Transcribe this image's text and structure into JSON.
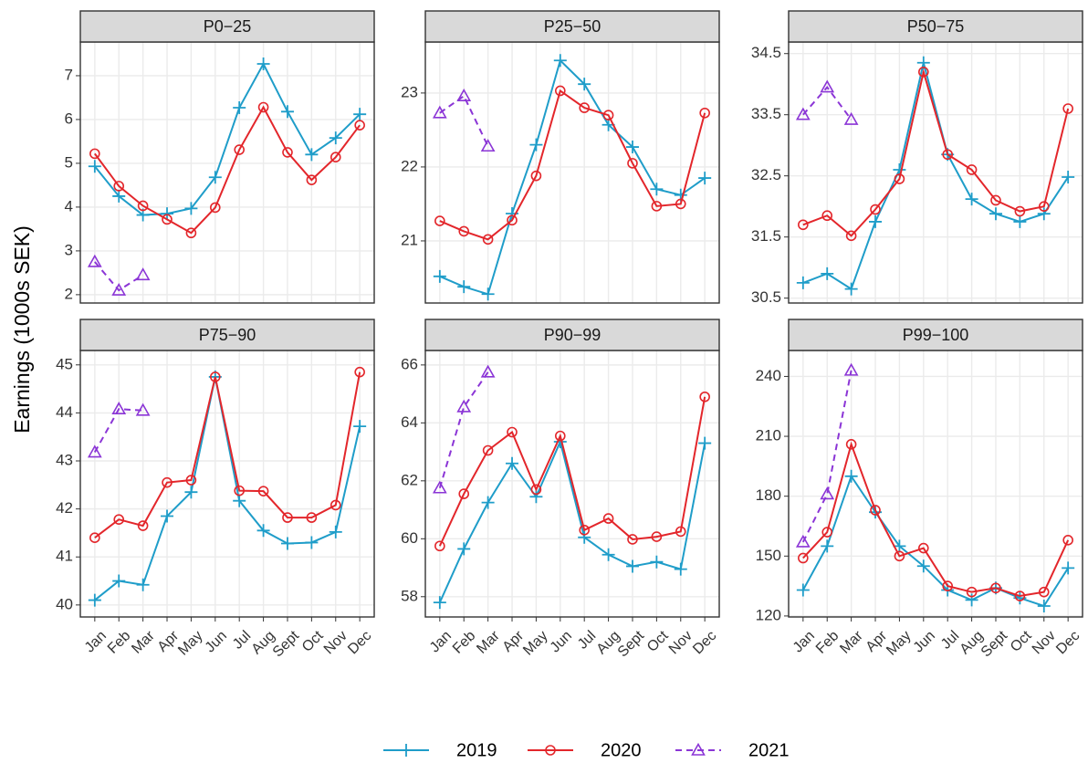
{
  "y_label": "Earnings (1000s SEK)",
  "categories": [
    "Jan",
    "Feb",
    "Mar",
    "Apr",
    "May",
    "Jun",
    "Jul",
    "Aug",
    "Sept",
    "Oct",
    "Nov",
    "Dec"
  ],
  "chart_data": [
    {
      "type": "line",
      "title": "P0−25",
      "ylim": [
        1.81,
        7.77
      ],
      "yticks": [
        2,
        3,
        4,
        5,
        6,
        7
      ],
      "grid": true,
      "series": [
        {
          "name": "2019",
          "color": "#1f9dc9",
          "marker": "plus",
          "dash": false,
          "values": [
            4.93,
            4.25,
            3.82,
            3.85,
            3.97,
            4.68,
            6.27,
            7.27,
            6.18,
            5.2,
            5.58,
            6.12
          ]
        },
        {
          "name": "2020",
          "color": "#e3262b",
          "marker": "circle",
          "dash": false,
          "values": [
            5.22,
            4.48,
            4.03,
            3.72,
            3.41,
            3.99,
            5.31,
            6.28,
            5.25,
            4.62,
            5.14,
            5.87
          ]
        },
        {
          "name": "2021",
          "color": "#8b35d6",
          "marker": "triangle",
          "dash": true,
          "values": [
            2.75,
            2.1,
            2.45,
            null,
            null,
            null,
            null,
            null,
            null,
            null,
            null,
            null
          ]
        }
      ]
    },
    {
      "type": "line",
      "title": "P25−50",
      "ylim": [
        20.16,
        23.69
      ],
      "yticks": [
        21,
        22,
        23
      ],
      "grid": true,
      "series": [
        {
          "name": "2019",
          "color": "#1f9dc9",
          "marker": "plus",
          "dash": false,
          "values": [
            20.52,
            20.38,
            20.28,
            21.37,
            22.3,
            23.44,
            23.12,
            22.57,
            22.27,
            21.7,
            21.62,
            21.85
          ]
        },
        {
          "name": "2020",
          "color": "#e3262b",
          "marker": "circle",
          "dash": false,
          "values": [
            21.27,
            21.13,
            21.02,
            21.28,
            21.88,
            23.03,
            22.8,
            22.7,
            22.05,
            21.47,
            21.5,
            22.73
          ]
        },
        {
          "name": "2021",
          "color": "#8b35d6",
          "marker": "triangle",
          "dash": true,
          "values": [
            22.73,
            22.96,
            22.28,
            null,
            null,
            null,
            null,
            null,
            null,
            null,
            null,
            null
          ]
        }
      ]
    },
    {
      "type": "line",
      "title": "P50−75",
      "ylim": [
        30.42,
        34.69
      ],
      "yticks": [
        30.5,
        31.5,
        32.5,
        33.5,
        34.5
      ],
      "grid": true,
      "series": [
        {
          "name": "2019",
          "color": "#1f9dc9",
          "marker": "plus",
          "dash": false,
          "values": [
            30.75,
            30.9,
            30.65,
            31.75,
            32.6,
            34.35,
            32.85,
            32.12,
            31.88,
            31.75,
            31.88,
            32.48
          ]
        },
        {
          "name": "2020",
          "color": "#e3262b",
          "marker": "circle",
          "dash": false,
          "values": [
            31.7,
            31.85,
            31.52,
            31.95,
            32.45,
            34.2,
            32.85,
            32.6,
            32.1,
            31.92,
            32.0,
            33.6
          ]
        },
        {
          "name": "2021",
          "color": "#8b35d6",
          "marker": "triangle",
          "dash": true,
          "values": [
            33.5,
            33.95,
            33.42,
            null,
            null,
            null,
            null,
            null,
            null,
            null,
            null,
            null
          ]
        }
      ]
    },
    {
      "type": "line",
      "title": "P75−90",
      "ylim": [
        39.75,
        45.3
      ],
      "yticks": [
        40,
        41,
        42,
        43,
        44,
        45
      ],
      "grid": true,
      "series": [
        {
          "name": "2019",
          "color": "#1f9dc9",
          "marker": "plus",
          "dash": false,
          "values": [
            40.1,
            40.5,
            40.42,
            41.85,
            42.35,
            44.75,
            42.17,
            41.55,
            41.28,
            41.3,
            41.52,
            43.72
          ]
        },
        {
          "name": "2020",
          "color": "#e3262b",
          "marker": "circle",
          "dash": false,
          "values": [
            41.4,
            41.78,
            41.65,
            42.55,
            42.6,
            44.75,
            42.38,
            42.37,
            41.82,
            41.82,
            42.08,
            44.85
          ]
        },
        {
          "name": "2021",
          "color": "#8b35d6",
          "marker": "triangle",
          "dash": true,
          "values": [
            43.18,
            44.08,
            44.05,
            null,
            null,
            null,
            null,
            null,
            null,
            null,
            null,
            null
          ]
        }
      ]
    },
    {
      "type": "line",
      "title": "P90−99",
      "ylim": [
        57.3,
        66.5
      ],
      "yticks": [
        58,
        60,
        62,
        64,
        66
      ],
      "grid": true,
      "series": [
        {
          "name": "2019",
          "color": "#1f9dc9",
          "marker": "plus",
          "dash": false,
          "values": [
            57.8,
            59.65,
            61.25,
            62.6,
            61.45,
            63.35,
            60.05,
            59.45,
            59.05,
            59.2,
            58.95,
            63.3
          ]
        },
        {
          "name": "2020",
          "color": "#e3262b",
          "marker": "circle",
          "dash": false,
          "values": [
            59.75,
            61.55,
            63.05,
            63.68,
            61.7,
            63.55,
            60.3,
            60.7,
            59.98,
            60.07,
            60.25,
            64.9
          ]
        },
        {
          "name": "2021",
          "color": "#8b35d6",
          "marker": "triangle",
          "dash": true,
          "values": [
            61.75,
            64.55,
            65.75,
            null,
            null,
            null,
            null,
            null,
            null,
            null,
            null,
            null
          ]
        }
      ]
    },
    {
      "type": "line",
      "title": "P99−100",
      "ylim": [
        119.5,
        253
      ],
      "yticks": [
        120,
        150,
        180,
        210,
        240
      ],
      "grid": true,
      "series": [
        {
          "name": "2019",
          "color": "#1f9dc9",
          "marker": "plus",
          "dash": false,
          "values": [
            133,
            155,
            190,
            172,
            155,
            145,
            133,
            128,
            134,
            129,
            125,
            144
          ]
        },
        {
          "name": "2020",
          "color": "#e3262b",
          "marker": "circle",
          "dash": false,
          "values": [
            149,
            162,
            206,
            173,
            150,
            154,
            135,
            132,
            134,
            130,
            132,
            158
          ]
        },
        {
          "name": "2021",
          "color": "#8b35d6",
          "marker": "triangle",
          "dash": true,
          "values": [
            157,
            181,
            243,
            null,
            null,
            null,
            null,
            null,
            null,
            null,
            null,
            null
          ]
        }
      ]
    }
  ]
}
